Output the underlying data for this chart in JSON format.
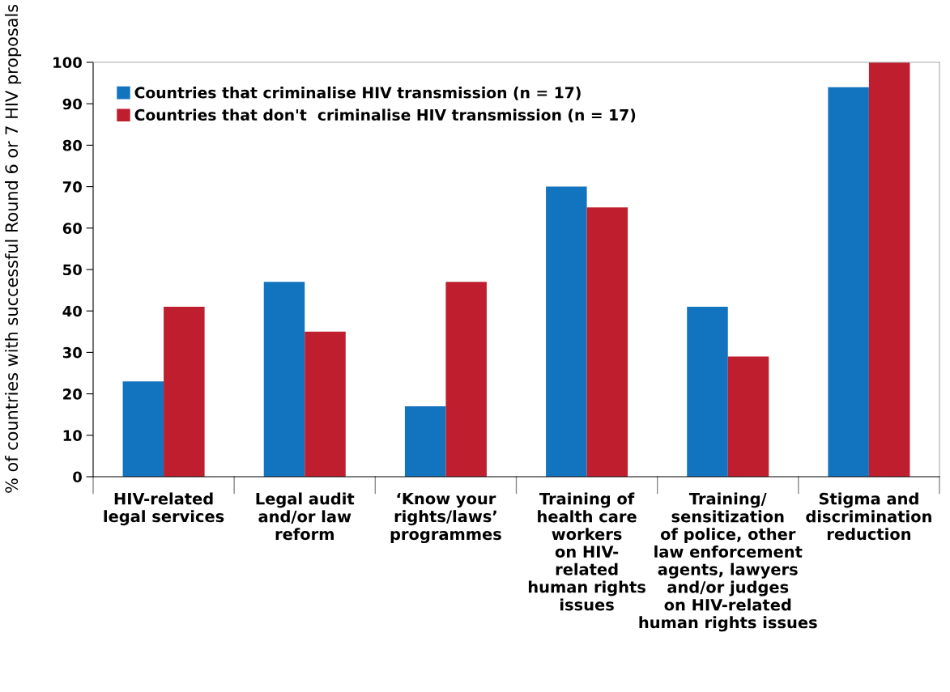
{
  "chart_data": {
    "type": "bar",
    "ylabel": "% of countries with successful Round 6 or 7 HIV proposals",
    "categories": [
      "HIV-related\nlegal services",
      "Legal audit\nand/or law\nreform",
      "‘Know your\nrights/laws’\nprogrammes",
      "Training of\nhealth care\nworkers\non HIV-\nrelated\nhuman rights\nissues",
      "Training/\nsensitization\nof police, other\nlaw enforcement\nagents, lawyers\nand/or judges\non HIV-related\nhuman rights issues",
      "Stigma and\ndiscrimination\nreduction"
    ],
    "series": [
      {
        "name": "Countries that criminalise HIV transmission (n = 17)",
        "color": "#1273be",
        "values": [
          23,
          47,
          17,
          70,
          41,
          94
        ]
      },
      {
        "name": "Countries that don't  criminalise HIV transmission (n = 17)",
        "color": "#be1e2d",
        "values": [
          41,
          35,
          47,
          65,
          29,
          100
        ]
      }
    ],
    "ylim": [
      0,
      100
    ],
    "yticks": [
      0,
      10,
      20,
      30,
      40,
      50,
      60,
      70,
      80,
      90,
      100
    ],
    "grid": false,
    "legend": "top left"
  }
}
